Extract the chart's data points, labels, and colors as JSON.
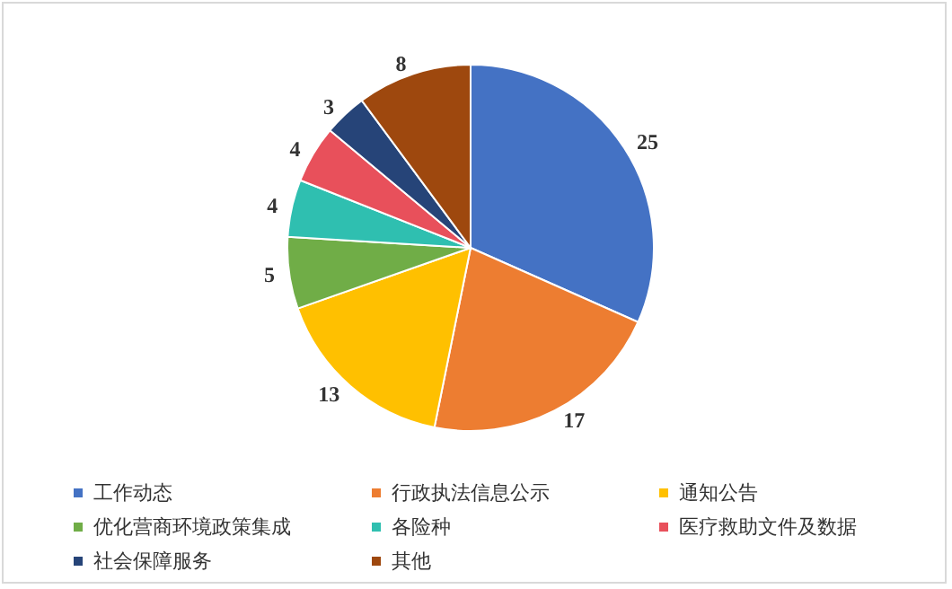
{
  "chart_data": {
    "type": "pie",
    "categories": [
      "工作动态",
      "行政执法信息公示",
      "通知公告",
      "优化营商环境政策集成",
      "各险种",
      "医疗救助文件及数据",
      "社会保障服务",
      "其他"
    ],
    "values": [
      25,
      17,
      13,
      5,
      4,
      4,
      3,
      8
    ],
    "colors": [
      "#4472c4",
      "#ed7d31",
      "#ffc000",
      "#70ad47",
      "#2fbfb0",
      "#e8505b",
      "#264478",
      "#9e480e"
    ],
    "data_labels": true,
    "legend": "bottom"
  }
}
